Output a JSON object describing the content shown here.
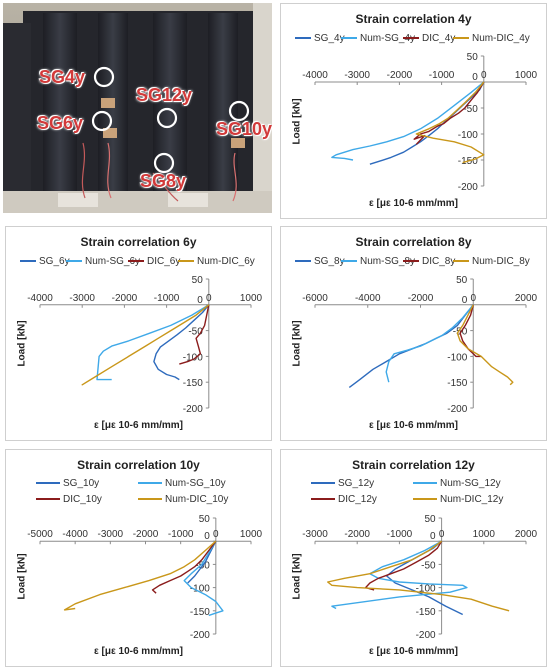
{
  "photo": {
    "labels": [
      "SG4y",
      "SG12y",
      "SG6y",
      "SG10y",
      "SG8y"
    ]
  },
  "colors": {
    "SG": "#2e6bbd",
    "Num-SG": "#3fa9e8",
    "DIC": "#8b1c1c",
    "Num-DIC": "#c9971a"
  },
  "chart_data": [
    {
      "type": "line",
      "title": "Strain correlation 4y",
      "xlabel": "ε [με 10-6 mm/mm]",
      "ylabel": "Load [kN]",
      "xlim": [
        -4000,
        1000
      ],
      "ylim": [
        -200,
        50
      ],
      "xticks": [
        -4000,
        -3000,
        -2000,
        -1000,
        0,
        1000
      ],
      "yticks": [
        50,
        0,
        -50,
        -100,
        -150,
        -200
      ],
      "legend_layout": "row",
      "series": [
        {
          "name": "SG_4y",
          "key": "SG",
          "x": [
            0,
            -100,
            -300,
            -500,
            -700,
            -900,
            -1100,
            -1300,
            -1500,
            -1700,
            -1900,
            -2200,
            -2500,
            -2700
          ],
          "y": [
            0,
            -15,
            -30,
            -45,
            -60,
            -75,
            -90,
            -103,
            -115,
            -125,
            -135,
            -145,
            -153,
            -158
          ]
        },
        {
          "name": "Num-SG_4y",
          "key": "Num-SG",
          "x": [
            0,
            -300,
            -700,
            -1100,
            -1500,
            -1900,
            -2300,
            -2700,
            -3100,
            -3500,
            -3600,
            -3300,
            -3100
          ],
          "y": [
            0,
            -20,
            -45,
            -70,
            -90,
            -105,
            -115,
            -123,
            -130,
            -140,
            -145,
            -147,
            -150
          ]
        },
        {
          "name": "DIC_4y",
          "key": "DIC",
          "x": [
            0,
            -150,
            -300,
            -450,
            -600,
            -800,
            -950,
            -1100,
            -1300,
            -1500,
            -1650,
            -1400,
            -1600
          ],
          "y": [
            0,
            -20,
            -35,
            -50,
            -60,
            -70,
            -80,
            -85,
            -95,
            -100,
            -110,
            -103,
            -120
          ]
        },
        {
          "name": "Num-DIC_4y",
          "key": "Num-DIC",
          "x": [
            0,
            -200,
            -450,
            -650,
            -850,
            -1050,
            -1300,
            -1600,
            -1200,
            -700,
            -300,
            0,
            -200,
            -500
          ],
          "y": [
            0,
            -20,
            -40,
            -55,
            -70,
            -80,
            -90,
            -100,
            -108,
            -115,
            -125,
            -140,
            -148,
            -155
          ]
        }
      ]
    },
    {
      "type": "line",
      "title": "Strain correlation 6y",
      "xlabel": "ε [με 10-6 mm/mm]",
      "ylabel": "Load [kN]",
      "xlim": [
        -4000,
        1000
      ],
      "ylim": [
        -200,
        50
      ],
      "xticks": [
        -4000,
        -3000,
        -2000,
        -1000,
        0,
        1000
      ],
      "yticks": [
        50,
        0,
        -50,
        -100,
        -150,
        -200
      ],
      "legend_layout": "row",
      "series": [
        {
          "name": "SG_6y",
          "key": "SG",
          "x": [
            0,
            -150,
            -350,
            -550,
            -750,
            -950,
            -1150,
            -1250,
            -1300,
            -1200,
            -1000,
            -800,
            -700
          ],
          "y": [
            0,
            -15,
            -30,
            -45,
            -58,
            -70,
            -82,
            -95,
            -110,
            -125,
            -135,
            -140,
            -145
          ]
        },
        {
          "name": "Num-SG_6y",
          "key": "Num-SG",
          "x": [
            0,
            -400,
            -900,
            -1400,
            -1900,
            -2300,
            -2500,
            -2600,
            -2650,
            -2300
          ],
          "y": [
            0,
            -20,
            -40,
            -55,
            -70,
            -80,
            -90,
            -100,
            -145,
            -145
          ]
        },
        {
          "name": "DIC_6y",
          "key": "DIC",
          "x": [
            0,
            -50,
            -100,
            -200,
            -300,
            -250,
            -200,
            -350,
            -500,
            -700
          ],
          "y": [
            0,
            -20,
            -40,
            -55,
            -65,
            -80,
            -95,
            -105,
            -110,
            -115
          ]
        },
        {
          "name": "Num-DIC_6y",
          "key": "Num-DIC",
          "x": [
            0,
            -300,
            -600,
            -900,
            -1200,
            -1500,
            -1900,
            -2300,
            -2700,
            -3000,
            -2900
          ],
          "y": [
            0,
            -20,
            -35,
            -50,
            -65,
            -80,
            -100,
            -120,
            -140,
            -155,
            -150
          ]
        }
      ]
    },
    {
      "type": "line",
      "title": "Strain correlation 8y",
      "xlabel": "ε [με 10-6 mm/mm]",
      "ylabel": "Load [kN]",
      "xlim": [
        -6000,
        2000
      ],
      "ylim": [
        -200,
        50
      ],
      "xticks": [
        -6000,
        -4000,
        -2000,
        0,
        2000
      ],
      "yticks": [
        50,
        0,
        -50,
        -100,
        -150,
        -200
      ],
      "legend_layout": "row",
      "series": [
        {
          "name": "SG_8y",
          "key": "SG",
          "x": [
            0,
            -300,
            -600,
            -1000,
            -1400,
            -1800,
            -2300,
            -2800,
            -3300,
            -3800,
            -4300,
            -4700
          ],
          "y": [
            0,
            -20,
            -40,
            -55,
            -65,
            -75,
            -85,
            -95,
            -110,
            -125,
            -145,
            -160
          ]
        },
        {
          "name": "Num-SG_8y",
          "key": "Num-SG",
          "x": [
            0,
            -400,
            -800,
            -1200,
            -1600,
            -2000,
            -2500,
            -3000,
            -3200,
            -3300,
            -3200
          ],
          "y": [
            0,
            -25,
            -45,
            -60,
            -70,
            -80,
            -88,
            -95,
            -110,
            -130,
            -150
          ]
        },
        {
          "name": "DIC_8y",
          "key": "DIC",
          "x": [
            0,
            -100,
            -300,
            -500,
            -400,
            -200,
            0,
            100,
            300
          ],
          "y": [
            0,
            -20,
            -40,
            -55,
            -70,
            -85,
            -95,
            -100,
            -100
          ]
        },
        {
          "name": "Num-DIC_8y",
          "key": "Num-DIC",
          "x": [
            0,
            -200,
            -400,
            -600,
            -500,
            -200,
            300,
            700,
            1000,
            1300,
            1500,
            1400
          ],
          "y": [
            0,
            -20,
            -40,
            -55,
            -70,
            -85,
            -100,
            -120,
            -130,
            -140,
            -150,
            -155
          ]
        }
      ]
    },
    {
      "type": "line",
      "title": "Strain correlation 10y",
      "xlabel": "ε [με 10-6 mm/mm]",
      "ylabel": "Load [kN]",
      "xlim": [
        -5000,
        1000
      ],
      "ylim": [
        -200,
        50
      ],
      "xticks": [
        -5000,
        -4000,
        -3000,
        -2000,
        -1000,
        0,
        1000
      ],
      "yticks": [
        50,
        0,
        -50,
        -100,
        -150,
        -200
      ],
      "legend_layout": "grid",
      "series": [
        {
          "name": "SG_10y",
          "key": "SG",
          "x": [
            0,
            -100,
            -200,
            -300,
            -450,
            -600,
            -800
          ],
          "y": [
            0,
            -15,
            -30,
            -45,
            -60,
            -75,
            -90
          ]
        },
        {
          "name": "Num-SG_10y",
          "key": "Num-SG",
          "x": [
            0,
            -200,
            -400,
            -700,
            -900,
            -700,
            -300,
            0,
            200,
            0,
            -200
          ],
          "y": [
            0,
            -25,
            -50,
            -70,
            -85,
            -100,
            -115,
            -130,
            -150,
            -155,
            -160
          ]
        },
        {
          "name": "DIC_10y",
          "key": "DIC",
          "x": [
            0,
            -200,
            -400,
            -600,
            -800,
            -1000,
            -1300,
            -1600,
            -1800,
            -1700
          ],
          "y": [
            0,
            -20,
            -40,
            -55,
            -65,
            -75,
            -85,
            -95,
            -105,
            -112
          ]
        },
        {
          "name": "Num-DIC_10y",
          "key": "Num-DIC",
          "x": [
            0,
            -300,
            -600,
            -900,
            -1300,
            -1900,
            -2600,
            -3300,
            -4000,
            -4300,
            -4000
          ],
          "y": [
            0,
            -20,
            -40,
            -55,
            -70,
            -85,
            -100,
            -115,
            -135,
            -148,
            -145
          ]
        }
      ]
    },
    {
      "type": "line",
      "title": "Strain correlation 12y",
      "xlabel": "ε [με 10-6 mm/mm]",
      "ylabel": "Load [kN]",
      "xlim": [
        -3000,
        2000
      ],
      "ylim": [
        -200,
        50
      ],
      "xticks": [
        -3000,
        -2000,
        -1000,
        0,
        1000,
        2000
      ],
      "yticks": [
        50,
        0,
        -50,
        -100,
        -150,
        -200
      ],
      "legend_layout": "grid",
      "series": [
        {
          "name": "SG_12y",
          "key": "SG",
          "x": [
            0,
            -200,
            -500,
            -800,
            -1100,
            -1300,
            -1100,
            -700,
            -300,
            100,
            500
          ],
          "y": [
            0,
            -15,
            -30,
            -45,
            -60,
            -75,
            -90,
            -105,
            -120,
            -140,
            -158
          ]
        },
        {
          "name": "Num-SG_12y",
          "key": "Num-SG",
          "x": [
            0,
            -400,
            -900,
            -1400,
            -1700,
            -1500,
            -1000,
            -300,
            500,
            600,
            200,
            -1000,
            -2600,
            -2500
          ],
          "y": [
            0,
            -20,
            -40,
            -55,
            -70,
            -80,
            -88,
            -92,
            -95,
            -100,
            -110,
            -120,
            -140,
            -145
          ]
        },
        {
          "name": "DIC_12y",
          "key": "DIC",
          "x": [
            0,
            -100,
            -300,
            -600,
            -900,
            -1200,
            -1500,
            -1700,
            -1800,
            -1600
          ],
          "y": [
            0,
            -15,
            -30,
            -45,
            -60,
            -70,
            -80,
            -90,
            -100,
            -105
          ]
        },
        {
          "name": "Num-DIC_12y",
          "key": "Num-DIC",
          "x": [
            0,
            -300,
            -700,
            -1200,
            -1700,
            -2300,
            -2700,
            -2600,
            -2000,
            -1000,
            0,
            700,
            1200,
            1600
          ],
          "y": [
            0,
            -20,
            -40,
            -55,
            -70,
            -80,
            -88,
            -95,
            -100,
            -105,
            -115,
            -125,
            -140,
            -150
          ]
        }
      ]
    }
  ]
}
